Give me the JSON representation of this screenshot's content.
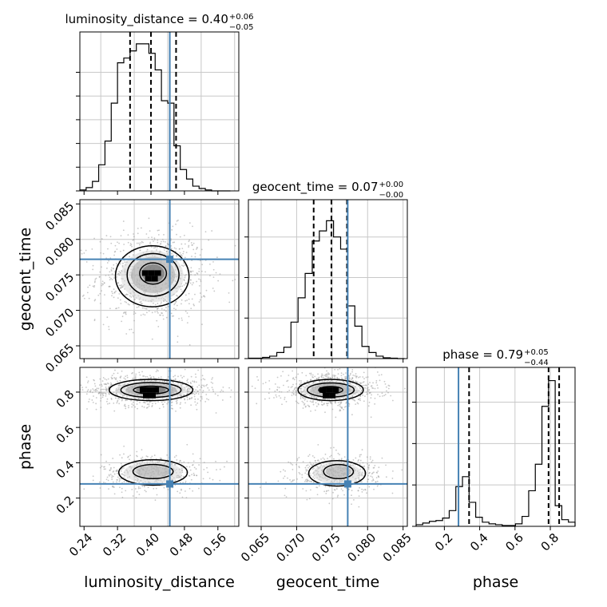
{
  "chart_data": {
    "type": "corner",
    "parameters": [
      "luminosity_distance",
      "geocent_time",
      "phase"
    ],
    "truth": {
      "luminosity_distance": 0.445,
      "geocent_time": 0.0772,
      "phase": 0.28
    },
    "truth_color": "#4682b4",
    "axis_ranges": {
      "luminosity_distance": [
        0.23,
        0.61
      ],
      "geocent_time": [
        0.0632,
        0.0856
      ],
      "phase": [
        0.04,
        0.94
      ]
    },
    "grid": true,
    "marginal_histograms": [
      {
        "parameter": "luminosity_distance",
        "title_main": "luminosity_distance = 0.40",
        "title_plus": "+0.06",
        "title_minus": "−0.05",
        "quantiles": [
          0.35,
          0.4,
          0.46
        ],
        "bin_edges": [
          0.23,
          0.245,
          0.26,
          0.275,
          0.29,
          0.305,
          0.32,
          0.335,
          0.35,
          0.365,
          0.38,
          0.395,
          0.41,
          0.425,
          0.44,
          0.455,
          0.47,
          0.485,
          0.5,
          0.515,
          0.53,
          0.545,
          0.56,
          0.575,
          0.59
        ],
        "counts": [
          2,
          7,
          20,
          55,
          105,
          185,
          270,
          280,
          295,
          310,
          310,
          290,
          255,
          190,
          185,
          95,
          45,
          25,
          10,
          5,
          2,
          0,
          0,
          0
        ],
        "y_ticks": [
          0,
          50,
          100,
          150,
          200,
          250
        ],
        "y_max": 335
      },
      {
        "parameter": "geocent_time",
        "title_main": "geocent_time = 0.07",
        "title_plus": "+0.00",
        "title_minus": "−0.00",
        "quantiles": [
          0.0724,
          0.0749,
          0.0771
        ],
        "bin_edges": [
          0.0632,
          0.0642,
          0.0652,
          0.0662,
          0.0672,
          0.0682,
          0.0692,
          0.0702,
          0.0712,
          0.0722,
          0.0732,
          0.0742,
          0.0752,
          0.0762,
          0.0772,
          0.0782,
          0.0792,
          0.0802,
          0.0812,
          0.0822,
          0.0832,
          0.0842,
          0.0852
        ],
        "counts": [
          1,
          1,
          3,
          6,
          15,
          28,
          90,
          150,
          210,
          290,
          315,
          340,
          300,
          270,
          130,
          80,
          30,
          15,
          6,
          2,
          1,
          0
        ],
        "y_ticks": [
          0,
          100,
          200,
          300
        ],
        "y_max": 392
      },
      {
        "parameter": "phase",
        "title_main": "phase = 0.79",
        "title_plus": "+0.05",
        "title_minus": "−0.44",
        "quantiles": [
          0.34,
          0.79,
          0.85
        ],
        "bin_edges": [
          0.04,
          0.0775,
          0.115,
          0.1525,
          0.19,
          0.2275,
          0.265,
          0.3025,
          0.34,
          0.3775,
          0.415,
          0.4525,
          0.49,
          0.5275,
          0.565,
          0.6025,
          0.64,
          0.6775,
          0.715,
          0.7525,
          0.79,
          0.8275,
          0.865,
          0.9025,
          0.94
        ],
        "counts": [
          10,
          20,
          30,
          35,
          50,
          95,
          240,
          300,
          145,
          55,
          25,
          15,
          10,
          5,
          5,
          15,
          60,
          215,
          375,
          725,
          880,
          125,
          40,
          25
        ],
        "y_ticks": [
          0,
          250,
          500,
          750
        ],
        "y_max": 960
      }
    ],
    "density_panels": [
      {
        "x": "luminosity_distance",
        "y": "geocent_time",
        "peak": [
          0.405,
          0.0752
        ],
        "contours": [
          {
            "level": "inner",
            "center": [
              0.405,
              0.0752
            ],
            "rx": 0.032,
            "ry": 0.0015
          },
          {
            "level": "middle",
            "center": [
              0.405,
              0.075
            ],
            "rx": 0.062,
            "ry": 0.003
          },
          {
            "level": "outer",
            "center": [
              0.403,
              0.0748
            ],
            "rx": 0.088,
            "ry": 0.0043
          }
        ]
      },
      {
        "x": "luminosity_distance",
        "y": "phase",
        "peak": [
          0.4,
          0.81
        ],
        "contours": [
          {
            "level": "inner",
            "center": [
              0.4,
              0.812
            ],
            "rx": 0.042,
            "ry": 0.022
          },
          {
            "level": "middle",
            "center": [
              0.4,
              0.812
            ],
            "rx": 0.072,
            "ry": 0.042
          },
          {
            "level": "outer",
            "center": [
              0.4,
              0.812
            ],
            "rx": 0.1,
            "ry": 0.06
          },
          {
            "level": "middle",
            "center": [
              0.405,
              0.35
            ],
            "rx": 0.048,
            "ry": 0.04
          },
          {
            "level": "outer",
            "center": [
              0.405,
              0.345
            ],
            "rx": 0.082,
            "ry": 0.072
          }
        ]
      },
      {
        "x": "geocent_time",
        "y": "phase",
        "peak": [
          0.0748,
          0.81
        ],
        "contours": [
          {
            "level": "inner",
            "center": [
              0.0748,
              0.812
            ],
            "rx": 0.0017,
            "ry": 0.02
          },
          {
            "level": "middle",
            "center": [
              0.0748,
              0.812
            ],
            "rx": 0.0033,
            "ry": 0.04
          },
          {
            "level": "outer",
            "center": [
              0.0748,
              0.812
            ],
            "rx": 0.0046,
            "ry": 0.06
          },
          {
            "level": "middle",
            "center": [
              0.0759,
              0.35
            ],
            "rx": 0.0021,
            "ry": 0.04
          },
          {
            "level": "outer",
            "center": [
              0.0757,
              0.34
            ],
            "rx": 0.004,
            "ry": 0.072
          }
        ]
      }
    ],
    "x_tick_labels": {
      "luminosity_distance": [
        "0.24",
        "0.32",
        "0.40",
        "0.48",
        "0.56"
      ],
      "geocent_time": [
        "0.065",
        "0.070",
        "0.075",
        "0.080",
        "0.085"
      ],
      "phase": [
        "0.2",
        "0.4",
        "0.6",
        "0.8"
      ]
    },
    "y_tick_labels": {
      "geocent_time": [
        "0.065",
        "0.070",
        "0.075",
        "0.080",
        "0.085"
      ],
      "phase": [
        "0.2",
        "0.4",
        "0.6",
        "0.8"
      ]
    },
    "axis_labels": {
      "x": [
        "luminosity_distance",
        "geocent_time",
        "phase"
      ],
      "y": [
        "geocent_time",
        "phase"
      ]
    }
  }
}
